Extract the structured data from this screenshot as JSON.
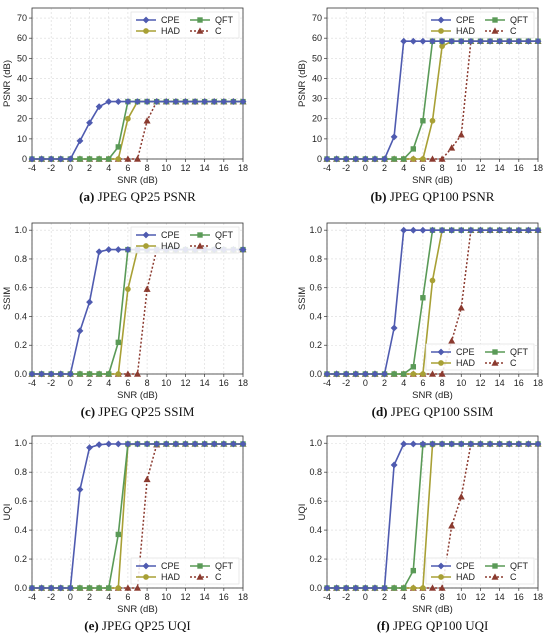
{
  "colors": {
    "CPE": "#4f5bb0",
    "HAD": "#a8a035",
    "QFT": "#5a9a57",
    "C": "#8b3a2f"
  },
  "legend": [
    {
      "key": "CPE",
      "label": "CPE",
      "marker": "diamond",
      "dash": false
    },
    {
      "key": "HAD",
      "label": "HAD",
      "marker": "circle",
      "dash": false
    },
    {
      "key": "QFT",
      "label": "QFT",
      "marker": "square",
      "dash": false
    },
    {
      "key": "C",
      "label": "C",
      "marker": "triangle",
      "dash": true
    }
  ],
  "chart_data": [
    {
      "type": "line",
      "caption_label": "(a)",
      "caption_text": "JPEG QP25 PSNR",
      "xlabel": "SNR (dB)",
      "ylabel": "PSNR (dB)",
      "xlim": [
        -4,
        18
      ],
      "ylim": [
        0,
        75
      ],
      "xticks": [
        -4,
        -2,
        0,
        2,
        4,
        6,
        8,
        10,
        12,
        14,
        16,
        18
      ],
      "yticks": [
        0,
        10,
        20,
        30,
        40,
        50,
        60,
        70
      ],
      "yticklabels": [
        "0",
        "10",
        "20",
        "30",
        "40",
        "50",
        "60",
        "70"
      ],
      "legend_position": "top-right",
      "grid": true,
      "x": [
        -4,
        -3,
        -2,
        -1,
        0,
        1,
        2,
        3,
        4,
        5,
        6,
        7,
        8,
        9,
        10,
        11,
        12,
        13,
        14,
        15,
        16,
        17,
        18
      ],
      "series": [
        {
          "name": "CPE",
          "values": [
            0,
            0,
            0,
            0,
            0,
            9,
            18,
            26,
            28.5,
            28.5,
            28.5,
            28.5,
            28.5,
            28.5,
            28.5,
            28.5,
            28.5,
            28.5,
            28.5,
            28.5,
            28.5,
            28.5,
            28.5
          ]
        },
        {
          "name": "HAD",
          "values": [
            0,
            0,
            0,
            0,
            0,
            0,
            0,
            0,
            0,
            0,
            20,
            28.5,
            28.5,
            28.5,
            28.5,
            28.5,
            28.5,
            28.5,
            28.5,
            28.5,
            28.5,
            28.5,
            28.5
          ]
        },
        {
          "name": "QFT",
          "values": [
            0,
            0,
            0,
            0,
            0,
            0,
            0,
            0,
            0,
            6,
            28.5,
            28.5,
            28.5,
            28.5,
            28.5,
            28.5,
            28.5,
            28.5,
            28.5,
            28.5,
            28.5,
            28.5,
            28.5
          ]
        },
        {
          "name": "C",
          "values": [
            0,
            0,
            0,
            0,
            0,
            0,
            0,
            0,
            0,
            0,
            0,
            0,
            19,
            28.5,
            28.5,
            28.5,
            28.5,
            28.5,
            28.5,
            28.5,
            28.5,
            28.5,
            28.5
          ]
        }
      ]
    },
    {
      "type": "line",
      "caption_label": "(b)",
      "caption_text": "JPEG QP100 PSNR",
      "xlabel": "SNR (dB)",
      "ylabel": "PSNR (dB)",
      "xlim": [
        -4,
        18
      ],
      "ylim": [
        0,
        75
      ],
      "xticks": [
        -4,
        -2,
        0,
        2,
        4,
        6,
        8,
        10,
        12,
        14,
        16,
        18
      ],
      "yticks": [
        0,
        10,
        20,
        30,
        40,
        50,
        60,
        70
      ],
      "yticklabels": [
        "0",
        "10",
        "20",
        "30",
        "40",
        "50",
        "60",
        "70"
      ],
      "legend_position": "top-right",
      "grid": true,
      "x": [
        -4,
        -3,
        -2,
        -1,
        0,
        1,
        2,
        3,
        4,
        5,
        6,
        7,
        8,
        9,
        10,
        11,
        12,
        13,
        14,
        15,
        16,
        17,
        18
      ],
      "series": [
        {
          "name": "CPE",
          "values": [
            0,
            0,
            0,
            0,
            0,
            0,
            0,
            11,
            58.5,
            58.5,
            58.5,
            58.5,
            58.5,
            58.5,
            58.5,
            58.5,
            58.5,
            58.5,
            58.5,
            58.5,
            58.5,
            58.5,
            58.5
          ]
        },
        {
          "name": "HAD",
          "values": [
            0,
            0,
            0,
            0,
            0,
            0,
            0,
            0,
            0,
            0,
            0,
            19,
            56,
            58.5,
            58.5,
            58.5,
            58.5,
            58.5,
            58.5,
            58.5,
            58.5,
            58.5,
            58.5
          ]
        },
        {
          "name": "QFT",
          "values": [
            0,
            0,
            0,
            0,
            0,
            0,
            0,
            0,
            0,
            5,
            19,
            58.5,
            58.5,
            58.5,
            58.5,
            58.5,
            58.5,
            58.5,
            58.5,
            58.5,
            58.5,
            58.5,
            58.5
          ]
        },
        {
          "name": "C",
          "values": [
            0,
            0,
            0,
            0,
            0,
            0,
            0,
            0,
            0,
            0,
            0,
            0,
            0,
            5.5,
            12,
            58.5,
            58.5,
            58.5,
            58.5,
            58.5,
            58.5,
            58.5,
            58.5
          ]
        }
      ]
    },
    {
      "type": "line",
      "caption_label": "(c)",
      "caption_text": "JPEG QP25 SSIM",
      "xlabel": "SNR (dB)",
      "ylabel": "SSIM",
      "xlim": [
        -4,
        18
      ],
      "ylim": [
        0,
        1.05
      ],
      "xticks": [
        -4,
        -2,
        0,
        2,
        4,
        6,
        8,
        10,
        12,
        14,
        16,
        18
      ],
      "yticks": [
        0,
        0.2,
        0.4,
        0.6,
        0.8,
        1.0
      ],
      "yticklabels": [
        "0.0",
        "0.2",
        "0.4",
        "0.6",
        "0.8",
        "1.0"
      ],
      "legend_position": "top-right",
      "grid": true,
      "x": [
        -4,
        -3,
        -2,
        -1,
        0,
        1,
        2,
        3,
        4,
        5,
        6,
        7,
        8,
        9,
        10,
        11,
        12,
        13,
        14,
        15,
        16,
        17,
        18
      ],
      "series": [
        {
          "name": "CPE",
          "values": [
            0,
            0,
            0,
            0,
            0,
            0.3,
            0.5,
            0.85,
            0.865,
            0.865,
            0.865,
            0.865,
            0.865,
            0.865,
            0.865,
            0.865,
            0.865,
            0.865,
            0.865,
            0.865,
            0.865,
            0.865,
            0.865
          ]
        },
        {
          "name": "HAD",
          "values": [
            0,
            0,
            0,
            0,
            0,
            0,
            0,
            0,
            0,
            0,
            0.59,
            0.865,
            0.865,
            0.865,
            0.865,
            0.865,
            0.865,
            0.865,
            0.865,
            0.865,
            0.865,
            0.865,
            0.865
          ]
        },
        {
          "name": "QFT",
          "values": [
            0,
            0,
            0,
            0,
            0,
            0,
            0,
            0,
            0,
            0.22,
            0.865,
            0.865,
            0.865,
            0.865,
            0.865,
            0.865,
            0.865,
            0.865,
            0.865,
            0.865,
            0.865,
            0.865,
            0.865
          ]
        },
        {
          "name": "C",
          "values": [
            0,
            0,
            0,
            0,
            0,
            0,
            0,
            0,
            0,
            0,
            0,
            0,
            0.59,
            0.865,
            0.865,
            0.865,
            0.865,
            0.865,
            0.865,
            0.865,
            0.865,
            0.865,
            0.865
          ]
        }
      ]
    },
    {
      "type": "line",
      "caption_label": "(d)",
      "caption_text": "JPEG QP100 SSIM",
      "xlabel": "SNR (dB)",
      "ylabel": "SSIM",
      "xlim": [
        -4,
        18
      ],
      "ylim": [
        0,
        1.05
      ],
      "xticks": [
        -4,
        -2,
        0,
        2,
        4,
        6,
        8,
        10,
        12,
        14,
        16,
        18
      ],
      "yticks": [
        0,
        0.2,
        0.4,
        0.6,
        0.8,
        1.0
      ],
      "yticklabels": [
        "0.0",
        "0.2",
        "0.4",
        "0.6",
        "0.8",
        "1.0"
      ],
      "legend_position": "bottom-right",
      "grid": true,
      "x": [
        -4,
        -3,
        -2,
        -1,
        0,
        1,
        2,
        3,
        4,
        5,
        6,
        7,
        8,
        9,
        10,
        11,
        12,
        13,
        14,
        15,
        16,
        17,
        18
      ],
      "series": [
        {
          "name": "CPE",
          "values": [
            0,
            0,
            0,
            0,
            0,
            0,
            0,
            0.32,
            1.0,
            1.0,
            1.0,
            1.0,
            1.0,
            1.0,
            1.0,
            1.0,
            1.0,
            1.0,
            1.0,
            1.0,
            1.0,
            1.0,
            1.0
          ]
        },
        {
          "name": "HAD",
          "values": [
            0,
            0,
            0,
            0,
            0,
            0,
            0,
            0,
            0,
            0,
            0,
            0.65,
            1.0,
            1.0,
            1.0,
            1.0,
            1.0,
            1.0,
            1.0,
            1.0,
            1.0,
            1.0,
            1.0
          ]
        },
        {
          "name": "QFT",
          "values": [
            0,
            0,
            0,
            0,
            0,
            0,
            0,
            0,
            0,
            0.05,
            0.53,
            1.0,
            1.0,
            1.0,
            1.0,
            1.0,
            1.0,
            1.0,
            1.0,
            1.0,
            1.0,
            1.0,
            1.0
          ]
        },
        {
          "name": "C",
          "values": [
            0,
            0,
            0,
            0,
            0,
            0,
            0,
            0,
            0,
            0,
            0,
            0,
            0,
            0.23,
            0.46,
            1.0,
            1.0,
            1.0,
            1.0,
            1.0,
            1.0,
            1.0,
            1.0
          ]
        }
      ]
    },
    {
      "type": "line",
      "caption_label": "(e)",
      "caption_text": "JPEG QP25 UQI",
      "xlabel": "SNR (dB)",
      "ylabel": "UQI",
      "xlim": [
        -4,
        18
      ],
      "ylim": [
        0,
        1.05
      ],
      "xticks": [
        -4,
        -2,
        0,
        2,
        4,
        6,
        8,
        10,
        12,
        14,
        16,
        18
      ],
      "yticks": [
        0,
        0.2,
        0.4,
        0.6,
        0.8,
        1.0
      ],
      "yticklabels": [
        "0.0",
        "0.2",
        "0.4",
        "0.6",
        "0.8",
        "1.0"
      ],
      "legend_position": "bottom-right",
      "grid": true,
      "x": [
        -4,
        -3,
        -2,
        -1,
        0,
        1,
        2,
        3,
        4,
        5,
        6,
        7,
        8,
        9,
        10,
        11,
        12,
        13,
        14,
        15,
        16,
        17,
        18
      ],
      "series": [
        {
          "name": "CPE",
          "values": [
            0,
            0,
            0,
            0,
            0,
            0.68,
            0.97,
            0.99,
            0.995,
            0.995,
            0.995,
            0.995,
            0.995,
            0.995,
            0.995,
            0.995,
            0.995,
            0.995,
            0.995,
            0.995,
            0.995,
            0.995,
            0.995
          ]
        },
        {
          "name": "HAD",
          "values": [
            0,
            0,
            0,
            0,
            0,
            0,
            0,
            0,
            0,
            0,
            0.99,
            0.995,
            0.995,
            0.995,
            0.995,
            0.995,
            0.995,
            0.995,
            0.995,
            0.995,
            0.995,
            0.995,
            0.995
          ]
        },
        {
          "name": "QFT",
          "values": [
            0,
            0,
            0,
            0,
            0,
            0,
            0,
            0,
            0,
            0.37,
            0.995,
            0.995,
            0.995,
            0.995,
            0.995,
            0.995,
            0.995,
            0.995,
            0.995,
            0.995,
            0.995,
            0.995,
            0.995
          ]
        },
        {
          "name": "C",
          "values": [
            0,
            0,
            0,
            0,
            0,
            0,
            0,
            0,
            0,
            0,
            0,
            0,
            0.75,
            0.99,
            0.995,
            0.995,
            0.995,
            0.995,
            0.995,
            0.995,
            0.995,
            0.995,
            0.995
          ]
        }
      ]
    },
    {
      "type": "line",
      "caption_label": "(f)",
      "caption_text": "JPEG QP100 UQI",
      "xlabel": "SNR (dB)",
      "ylabel": "UQI",
      "xlim": [
        -4,
        18
      ],
      "ylim": [
        0,
        1.05
      ],
      "xticks": [
        -4,
        -2,
        0,
        2,
        4,
        6,
        8,
        10,
        12,
        14,
        16,
        18
      ],
      "yticks": [
        0,
        0.2,
        0.4,
        0.6,
        0.8,
        1.0
      ],
      "yticklabels": [
        "0.0",
        "0.2",
        "0.4",
        "0.6",
        "0.8",
        "1.0"
      ],
      "legend_position": "bottom-right",
      "grid": true,
      "x": [
        -4,
        -3,
        -2,
        -1,
        0,
        1,
        2,
        3,
        4,
        5,
        6,
        7,
        8,
        9,
        10,
        11,
        12,
        13,
        14,
        15,
        16,
        17,
        18
      ],
      "series": [
        {
          "name": "CPE",
          "values": [
            0,
            0,
            0,
            0,
            0,
            0,
            0,
            0.85,
            0.995,
            0.995,
            0.995,
            0.995,
            0.995,
            0.995,
            0.995,
            0.995,
            0.995,
            0.995,
            0.995,
            0.995,
            0.995,
            0.995,
            0.995
          ]
        },
        {
          "name": "HAD",
          "values": [
            0,
            0,
            0,
            0,
            0,
            0,
            0,
            0,
            0,
            0,
            0,
            0.99,
            0.995,
            0.995,
            0.995,
            0.995,
            0.995,
            0.995,
            0.995,
            0.995,
            0.995,
            0.995,
            0.995
          ]
        },
        {
          "name": "QFT",
          "values": [
            0,
            0,
            0,
            0,
            0,
            0,
            0,
            0,
            0,
            0.12,
            0.99,
            0.995,
            0.995,
            0.995,
            0.995,
            0.995,
            0.995,
            0.995,
            0.995,
            0.995,
            0.995,
            0.995,
            0.995
          ]
        },
        {
          "name": "C",
          "values": [
            0,
            0,
            0,
            0,
            0,
            0,
            0,
            0,
            0,
            0,
            0,
            0,
            0,
            0.43,
            0.63,
            0.995,
            0.995,
            0.995,
            0.995,
            0.995,
            0.995,
            0.995,
            0.995
          ]
        }
      ]
    }
  ]
}
